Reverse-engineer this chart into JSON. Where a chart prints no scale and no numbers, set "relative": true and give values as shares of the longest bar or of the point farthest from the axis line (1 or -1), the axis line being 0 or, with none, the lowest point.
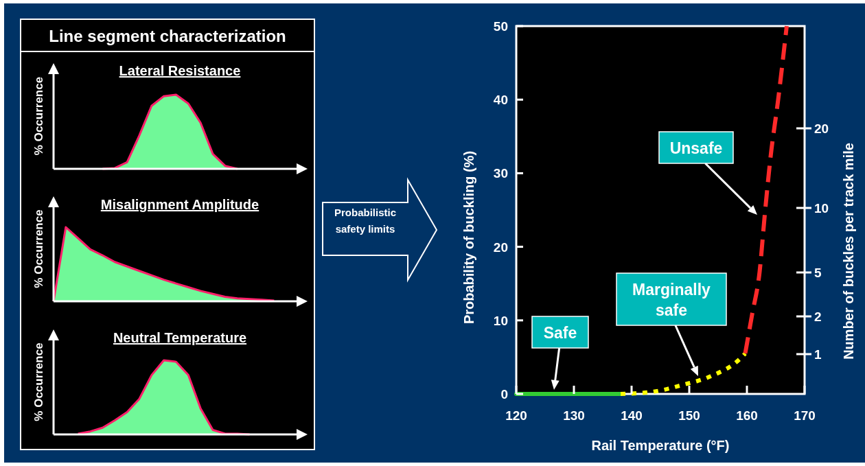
{
  "chart_data": [
    {
      "type": "area",
      "title": "Line segment characterization",
      "subtitle": "Lateral Resistance",
      "ylabel": "% Occurrence",
      "relative": true,
      "color": "#70f898",
      "categories": [
        null,
        null,
        null,
        null,
        null,
        null,
        null,
        null,
        null,
        null,
        null,
        null,
        null,
        null,
        null,
        null,
        null,
        null,
        null,
        null,
        null
      ],
      "values": [
        null,
        null,
        null,
        null,
        0,
        0.01,
        0.09,
        0.45,
        0.85,
        0.98,
        1,
        0.88,
        0.62,
        0.2,
        0.04,
        0,
        null,
        null,
        null,
        null,
        null
      ]
    },
    {
      "type": "area",
      "title": "Misalignment Amplitude",
      "ylabel": "% Occurrence",
      "relative": true,
      "color": "#70f898",
      "categories": [
        null,
        null,
        null,
        null,
        null,
        null,
        null,
        null,
        null,
        null,
        null,
        null,
        null,
        null,
        null,
        null,
        null,
        null,
        null,
        null,
        null
      ],
      "values": [
        0,
        1,
        0.85,
        0.7,
        0.62,
        0.53,
        0.47,
        0.41,
        0.35,
        0.29,
        0.24,
        0.19,
        0.14,
        0.1,
        0.06,
        0.04,
        0.03,
        0.02,
        0.01,
        null,
        null
      ]
    },
    {
      "type": "area",
      "title": "Neutral Temperature",
      "ylabel": "% Occurrence",
      "relative": true,
      "color": "#70f898",
      "categories": [
        null,
        null,
        null,
        null,
        null,
        null,
        null,
        null,
        null,
        null,
        null,
        null,
        null,
        null,
        null,
        null,
        null,
        null,
        null,
        null,
        null
      ],
      "values": [
        null,
        null,
        0.01,
        0.04,
        0.09,
        0.19,
        0.3,
        0.48,
        0.8,
        1,
        0.98,
        0.8,
        0.35,
        0.06,
        0.01,
        0.01,
        0,
        null,
        null,
        null,
        null
      ]
    },
    {
      "type": "line",
      "xlabel": "Rail Temperature (°F)",
      "ylabel": "Probability  of buckling (%)",
      "y2label": "Number of buckles per track mile",
      "xlim": [
        120,
        170
      ],
      "xticks": [
        120,
        130,
        140,
        150,
        160,
        170
      ],
      "ylim": [
        0,
        50
      ],
      "yticks": [
        0,
        10,
        20,
        30,
        40,
        50
      ],
      "y2_categories": [
        "20",
        "10",
        "5",
        "2",
        "1"
      ],
      "series": [
        {
          "color": "#33cc33",
          "line_style": "solid",
          "x": [
            120,
            138.1
          ],
          "values": [
            0,
            0
          ]
        },
        {
          "color": "#ffff00",
          "line_style": "dotted",
          "x": [
            138.1,
            143.8,
            148.7,
            153.7,
            158.7,
            159.7
          ],
          "values": [
            0,
            0.3,
            1.2,
            2.4,
            4.7,
            5.5
          ]
        },
        {
          "color": "#ff2a2a",
          "line_style": "dashed",
          "x": [
            159.7,
            160.9,
            162.2,
            163.1,
            164.1,
            165.4,
            166.9
          ],
          "values": [
            5.5,
            10.8,
            16.6,
            24.4,
            32.2,
            39.9,
            50
          ]
        }
      ],
      "annotations": [
        "Probabilistic safety limits",
        "Safe",
        "Marginally safe",
        "Unsafe"
      ]
    }
  ]
}
